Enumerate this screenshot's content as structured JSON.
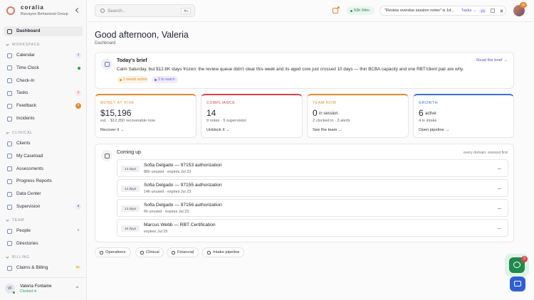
{
  "sidebar": {
    "brand": "coralia",
    "org": "Biscayne Behavioral Group",
    "active": "Dashboard",
    "sections": [
      {
        "title": "WORKSPACE",
        "items": [
          {
            "label": "Calendar",
            "badge": "1"
          },
          {
            "label": "Time Clock",
            "dot": "#22a34a"
          },
          {
            "label": "Check-In"
          },
          {
            "label": "Tasks",
            "badge": "1",
            "badge_tone": "red"
          },
          {
            "label": "Feedback",
            "badge": "2",
            "badge_tone": "orange"
          },
          {
            "label": "Incidents"
          }
        ]
      },
      {
        "title": "CLINICAL",
        "items": [
          {
            "label": "Clients"
          },
          {
            "label": "My Caseload"
          },
          {
            "label": "Assessments"
          },
          {
            "label": "Progress Reports"
          },
          {
            "label": "Data Center"
          },
          {
            "label": "Supervision",
            "badge": "6"
          }
        ]
      },
      {
        "title": "TEAM",
        "items": [
          {
            "label": "People",
            "badge": "6",
            "badge_tone": "plain"
          },
          {
            "label": "Directories"
          }
        ]
      },
      {
        "title": "BILLING",
        "items": [
          {
            "label": "Claims & Billing",
            "badge": "21",
            "badge_tone": "yellow"
          }
        ]
      }
    ],
    "user": {
      "initials": "VF",
      "name": "Valeria Fontaine",
      "status": "Clocked in"
    }
  },
  "topbar": {
    "search": "Search...",
    "shortcut": "⌘K",
    "timer": "53h 04m",
    "task": "\"Review overdue session notes\" is 1d...",
    "task_link": "Tasks →",
    "task_count": "1/1",
    "avatar_badge": "10"
  },
  "header": {
    "greeting": "Good afternoon, Valeria",
    "breadcrumb": "Dashboard"
  },
  "brief": {
    "title": "Today's brief",
    "link": "Read the brief →",
    "text": "Calm Saturday, but $12.8K stays frozen: the review queue didn't clear this week and its aged core just crossed 10 days — thin BCBA capacity and one RBT/client pair are why.",
    "tags": [
      {
        "label": "1 needs action",
        "color": "#e8892b",
        "bg": "#fdf3e2"
      },
      {
        "label": "3 to watch",
        "color": "#7b5cd6",
        "bg": "#f0ecfb"
      }
    ]
  },
  "metrics": [
    {
      "label": "MONEY AT RISK",
      "value": "$15,196",
      "detail": "est. · $12,350 recoverable now",
      "link": "Recover it →",
      "color": "#e8892b"
    },
    {
      "label": "COMPLIANCE",
      "value": "14",
      "detail": "9 notes · 5 supervision",
      "link": "Unblock it →",
      "color": "#d9434b"
    },
    {
      "label": "TEAM NOW",
      "value": "0",
      "unit": "in session",
      "detail": "2 clocked in · 3 alerts",
      "link": "See the team →",
      "color": "#e8892b"
    },
    {
      "label": "GROWTH",
      "value": "6",
      "unit": "active",
      "detail": "4 in intake",
      "link": "Open pipeline →",
      "color": "#3b6fd8"
    }
  ],
  "coming_up": {
    "title": "Coming up",
    "hint": "every domain, soonest first",
    "items": [
      {
        "due": "13 days",
        "title": "Sofia Delgado — 97153 authorization",
        "detail": "86h unused · expires Jul 23"
      },
      {
        "due": "13 days",
        "title": "Sofia Delgado — 97155 authorization",
        "detail": "14h unused · expires Jul 23"
      },
      {
        "due": "13 days",
        "title": "Sofia Delgado — 97156 authorization",
        "detail": "6h unused · expires Jul 23"
      },
      {
        "due": "18 days",
        "title": "Marcus Webb — RBT Certification",
        "detail": "expires Jul 29"
      }
    ]
  },
  "tabs": [
    "Operations",
    "Clinical",
    "Financial",
    "Intake pipeline"
  ],
  "chat_badge": "3"
}
